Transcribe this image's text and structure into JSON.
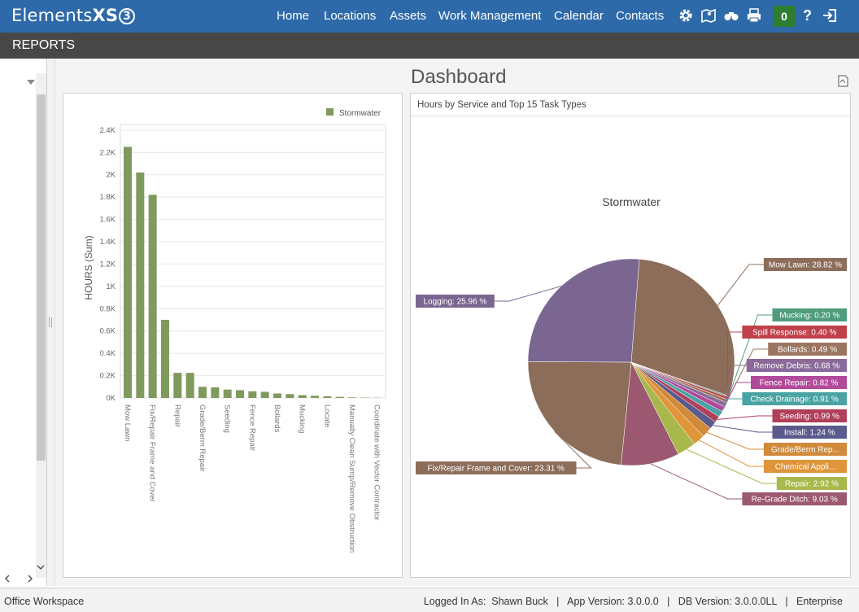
{
  "app": {
    "logo_text": "Elements",
    "logo_xs": "XS",
    "logo_num": "3"
  },
  "nav": [
    {
      "label": "Home"
    },
    {
      "label": "Locations"
    },
    {
      "label": "Assets"
    },
    {
      "label": "Work Management"
    },
    {
      "label": "Calendar"
    },
    {
      "label": "Contacts"
    }
  ],
  "toolbar": {
    "notification_count": "0",
    "help": "?"
  },
  "section_title": "REPORTS",
  "dashboard_title": "Dashboard",
  "bar_chart": {
    "chart_data": {
      "type": "bar",
      "categories": [
        "Mow Lawn",
        "",
        "Fix/Repair Frame and Cover",
        "",
        "Repair",
        "",
        "Grade/Berm Repair",
        "",
        "Seeding",
        "",
        "Fence Repair",
        "",
        "Bollards",
        "",
        "Mucking",
        "",
        "Locate",
        "",
        "Manually Clean Sump/Remove Obstruction",
        "",
        "Coordinate with Vector Contractor"
      ],
      "values": [
        2250,
        2020,
        1820,
        700,
        225,
        225,
        100,
        95,
        75,
        70,
        60,
        55,
        40,
        35,
        25,
        20,
        15,
        10,
        5,
        3,
        2
      ],
      "ylabel": "HOURS (Sum)",
      "ylim": [
        0,
        2500
      ],
      "yticks": [
        "0K",
        "0.2K",
        "0.4K",
        "0.6K",
        "0.8K",
        "1K",
        "1.2K",
        "1.4K",
        "1.6K",
        "1.8K",
        "2K",
        "2.2K",
        "2.4K"
      ],
      "series_name": "Stormwater",
      "legend": "top-right",
      "color": "#7f9a5d"
    }
  },
  "pie_chart": {
    "header": "Hours by Service and Top 15 Task Types",
    "title": "Stormwater",
    "chart_data": {
      "type": "pie",
      "slices": [
        {
          "label": "Mow Lawn: 28.82 %",
          "value": 28.82,
          "color": "#8c6d5a"
        },
        {
          "label": "Mucking: 0.20 %",
          "value": 0.2,
          "color": "#4e9c7c"
        },
        {
          "label": "Spill Response: 0.40 %",
          "value": 0.4,
          "color": "#c0404a"
        },
        {
          "label": "Bollards: 0.49 %",
          "value": 0.49,
          "color": "#9c7560"
        },
        {
          "label": "Remove Debris: 0.68 %",
          "value": 0.68,
          "color": "#8a6a9a"
        },
        {
          "label": "Fence Repair: 0.82 %",
          "value": 0.82,
          "color": "#b14a9a"
        },
        {
          "label": "Check Drainage: 0.91 %",
          "value": 0.91,
          "color": "#4aa3a3"
        },
        {
          "label": "Seeding: 0.99 %",
          "value": 0.99,
          "color": "#b0405a"
        },
        {
          "label": "Install: 1.24 %",
          "value": 1.24,
          "color": "#5a5a8c"
        },
        {
          "label": "Grade/Berm Rep...",
          "value": 1.6,
          "color": "#d08a3a"
        },
        {
          "label": "Chemical Appli...",
          "value": 1.8,
          "color": "#e0953a"
        },
        {
          "label": "Repair: 2.92 %",
          "value": 2.92,
          "color": "#a8b84a"
        },
        {
          "label": "Re-Grade Ditch: 9.03 %",
          "value": 9.03,
          "color": "#9c5870"
        },
        {
          "label": "Fix/Repair Frame and Cover: 23.31 %",
          "value": 23.31,
          "color": "#8c6d5a"
        },
        {
          "label": "Logging: 25.96 %",
          "value": 25.96,
          "color": "#7a6690"
        }
      ]
    }
  },
  "footer": {
    "workspace": "Office Workspace",
    "info": "Logged In As:  Shawn Buck   |   App Version: 3.0.0.0   |   DB Version: 3.0.0.0LL   |   Enterprise"
  }
}
